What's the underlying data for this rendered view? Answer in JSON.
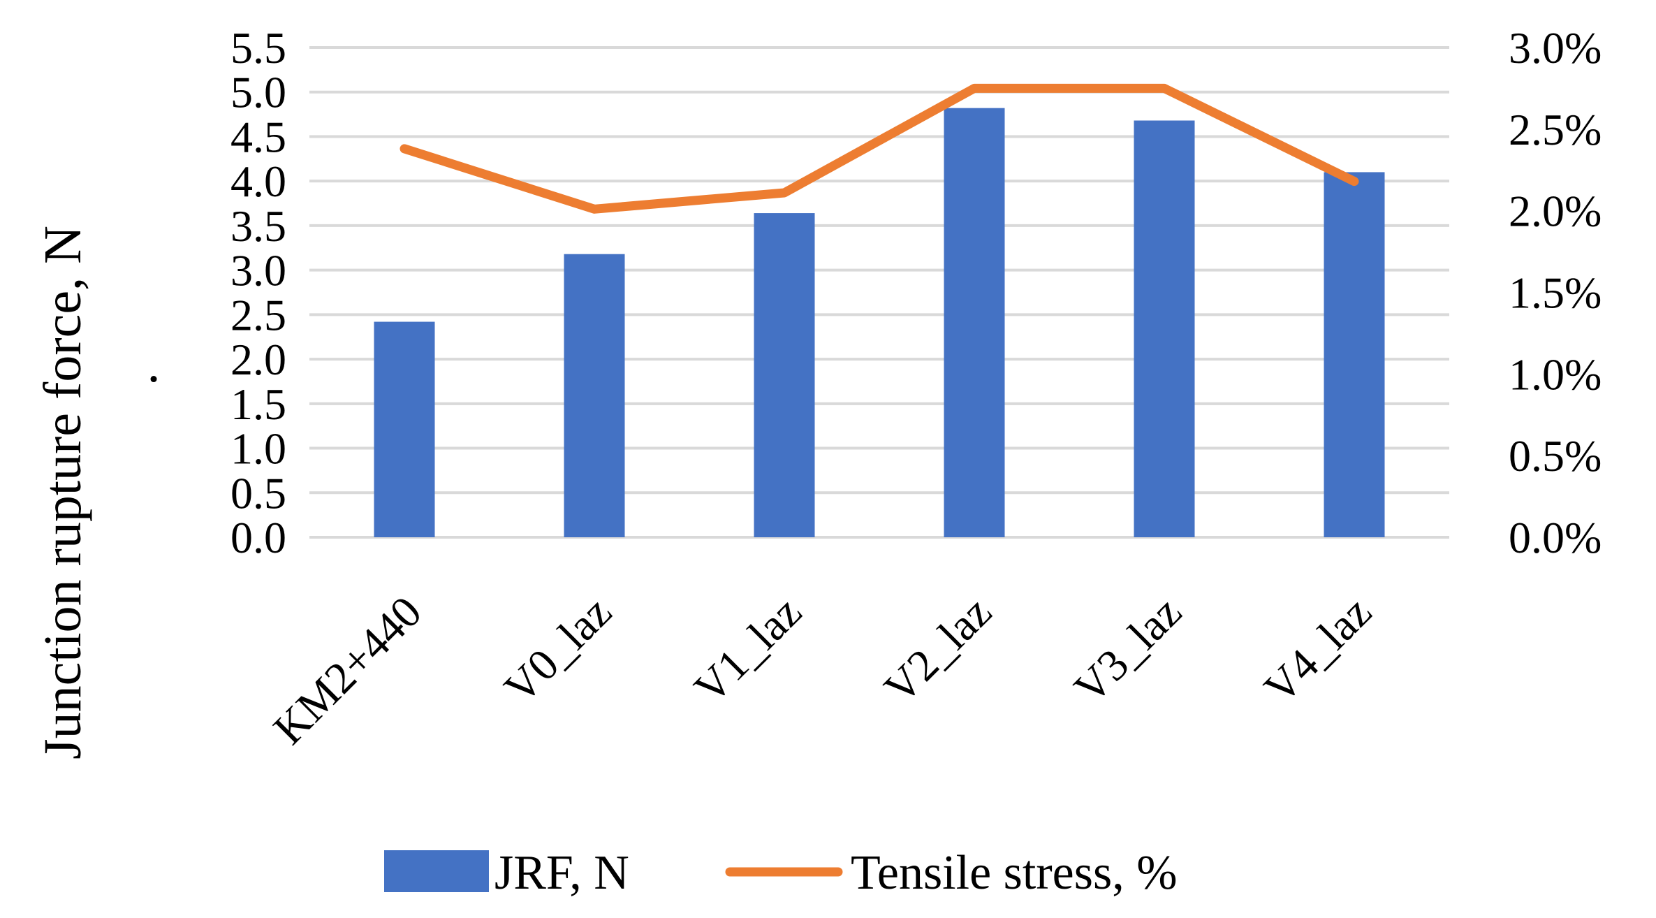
{
  "chart_data": {
    "type": "bar",
    "title": "",
    "xlabel": "",
    "ylabel": "Junction rupture force, N",
    "ylabel_mark": "·",
    "categories": [
      "KM2+440",
      "V0_laz",
      "V1_laz",
      "V2_laz",
      "V3_laz",
      "V4_laz"
    ],
    "ylim": [
      0,
      5.5
    ],
    "y_ticks": [
      "0.0",
      "0.5",
      "1.0",
      "1.5",
      "2.0",
      "2.5",
      "3.0",
      "3.5",
      "4.0",
      "4.5",
      "5.0",
      "5.5"
    ],
    "y2lim": [
      0,
      3.0
    ],
    "y2_ticks": [
      "0.0%",
      "0.5%",
      "1.0%",
      "1.5%",
      "2.0%",
      "2.5%",
      "3.0%"
    ],
    "grid": true,
    "legend_position": "bottom",
    "series": [
      {
        "name": "JRF, N",
        "type": "bar",
        "axis": "left",
        "color": "#4472C4",
        "values": [
          2.42,
          3.18,
          3.64,
          4.82,
          4.68,
          4.1
        ]
      },
      {
        "name": "Tensile stress, %",
        "type": "line",
        "axis": "right",
        "color": "#ED7D31",
        "values": [
          2.38,
          2.01,
          2.11,
          2.75,
          2.75,
          2.18
        ]
      }
    ]
  }
}
